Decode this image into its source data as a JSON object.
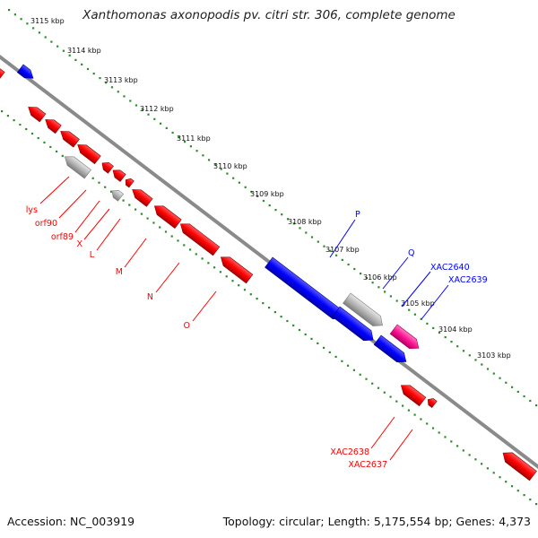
{
  "title": "Xanthomonas axonopodis pv. citri str. 306, complete genome",
  "footer": {
    "accession": "Accession: NC_003919",
    "summary": "Topology: circular; Length: 5,175,554 bp; Genes: 4,373"
  },
  "colors": {
    "backbone": "#8a8a8a",
    "scale_dots": "#2e8b2e",
    "forward_gene": "#0000ff",
    "reverse_gene": "#ff0000",
    "other_gene": "#b5b5b5",
    "highlighted_gene": "#ff1493"
  },
  "scale_ticks": [
    "3115 kbp",
    "3114 kbp",
    "3113 kbp",
    "3112 kbp",
    "3111 kbp",
    "3110 kbp",
    "3109 kbp",
    "3108 kbp",
    "3107 kbp",
    "3106 kbp",
    "3105 kbp",
    "3104 kbp",
    "3103 kbp"
  ],
  "gene_labels": {
    "reverse": [
      "lys",
      "orf90",
      "orf89",
      "X",
      "L",
      "M",
      "N",
      "O",
      "XAC2638",
      "XAC2637"
    ],
    "forward": [
      "P",
      "Q",
      "XAC2640",
      "XAC2639"
    ]
  }
}
